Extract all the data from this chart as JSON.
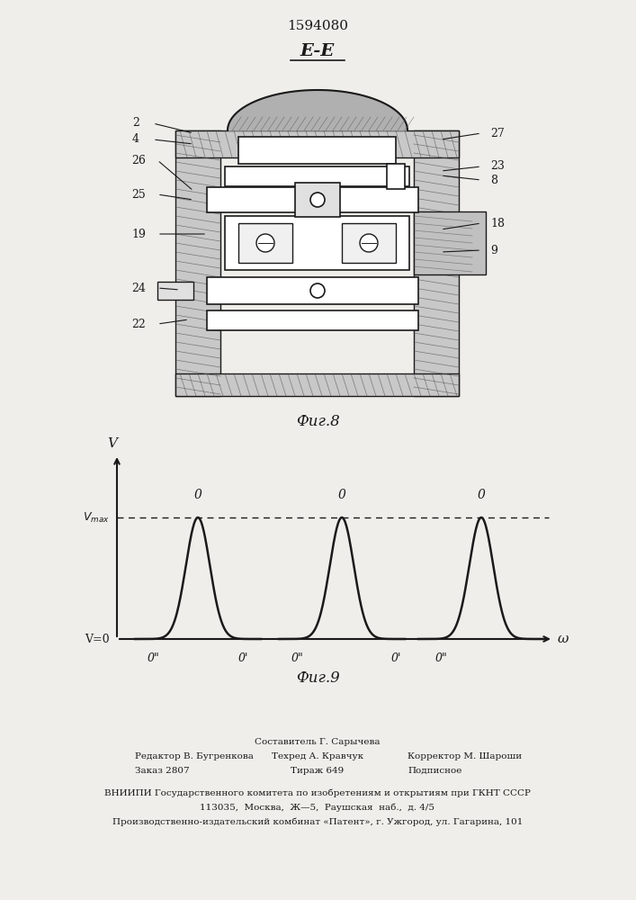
{
  "patent_number": "1594080",
  "section_label": "E-E",
  "fig8_label": "Фиг.8",
  "fig9_label": "Фиг.9",
  "bg_color": "#f0eeea",
  "line_color": "#1a1a1a",
  "footer_line1_center": "Составитель Г. Сарычева",
  "footer_line2_left": "Редактор В. Бугренкова",
  "footer_line2_center": "Техред А. Кравчук",
  "footer_line2_right": "Корректор М. Шароши",
  "footer_line3_left": "Заказ 2807",
  "footer_line3_center": "Тираж 649",
  "footer_line3_right": "Подписное",
  "footer_line4": "ВНИИПИ Государственного комитета по изобретениям и открытиям при ГКНТ СССР",
  "footer_line5": "113035,  Москва,  Ж—5,  Раушская  наб.,  д. 4/5",
  "footer_line6": "Производственно-издательский комбинат «Патент», г. Ужгород, ул. Гагарина, 101"
}
